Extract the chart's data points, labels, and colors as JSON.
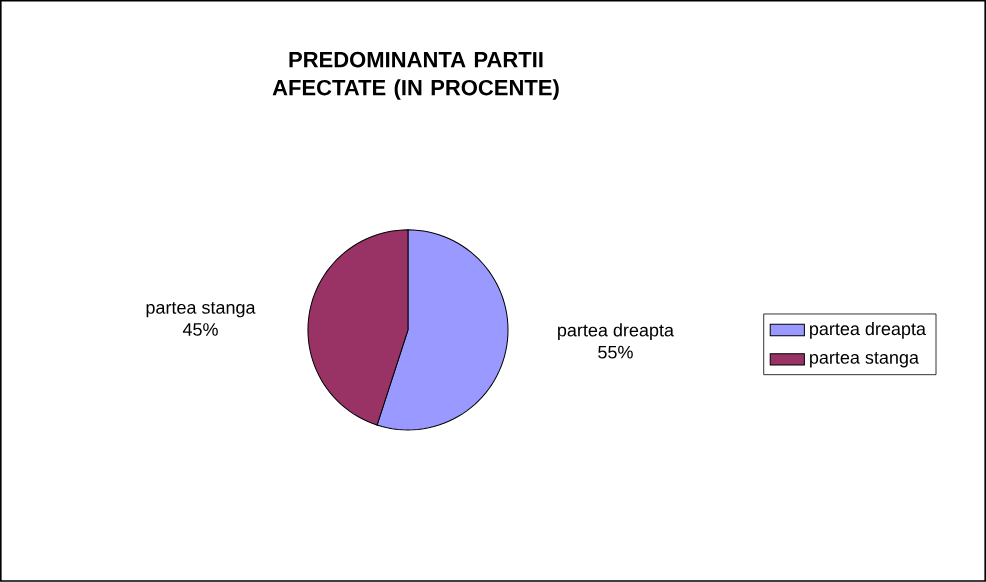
{
  "chart_data": {
    "type": "pie",
    "title": "PREDOMINANTA PARTII AFECTATE (IN PROCENTE)",
    "categories": [
      "partea dreapta",
      "partea stanga"
    ],
    "values": [
      55,
      45
    ],
    "value_labels": [
      "55%",
      "45%"
    ],
    "colors": [
      "#9999ff",
      "#993366"
    ],
    "legend": "right"
  }
}
